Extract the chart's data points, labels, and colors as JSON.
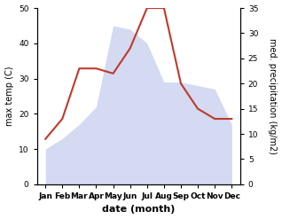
{
  "months": [
    "Jan",
    "Feb",
    "Mar",
    "Apr",
    "May",
    "Jun",
    "Jul",
    "Aug",
    "Sep",
    "Oct",
    "Nov",
    "Dec"
  ],
  "temp": [
    10,
    13,
    17,
    22,
    45,
    44,
    40,
    29,
    29,
    28,
    27,
    17
  ],
  "precip": [
    9,
    13,
    23,
    23,
    22,
    27,
    35,
    35,
    20,
    15,
    13,
    13
  ],
  "precip_color": "#c0392b",
  "fill_color": "#b0bde8",
  "ylabel_left": "max temp (C)",
  "ylabel_right": "med. precipitation (kg/m2)",
  "xlabel": "date (month)",
  "ylim_left": [
    0,
    50
  ],
  "ylim_right": [
    0,
    35
  ],
  "yticks_left": [
    0,
    10,
    20,
    30,
    40,
    50
  ],
  "yticks_right": [
    0,
    5,
    10,
    15,
    20,
    25,
    30,
    35
  ],
  "bg_color": "#ffffff",
  "fill_alpha": 0.55,
  "line_width": 1.5,
  "label_fontsize": 7,
  "tick_fontsize": 6.5,
  "xlabel_fontsize": 8
}
